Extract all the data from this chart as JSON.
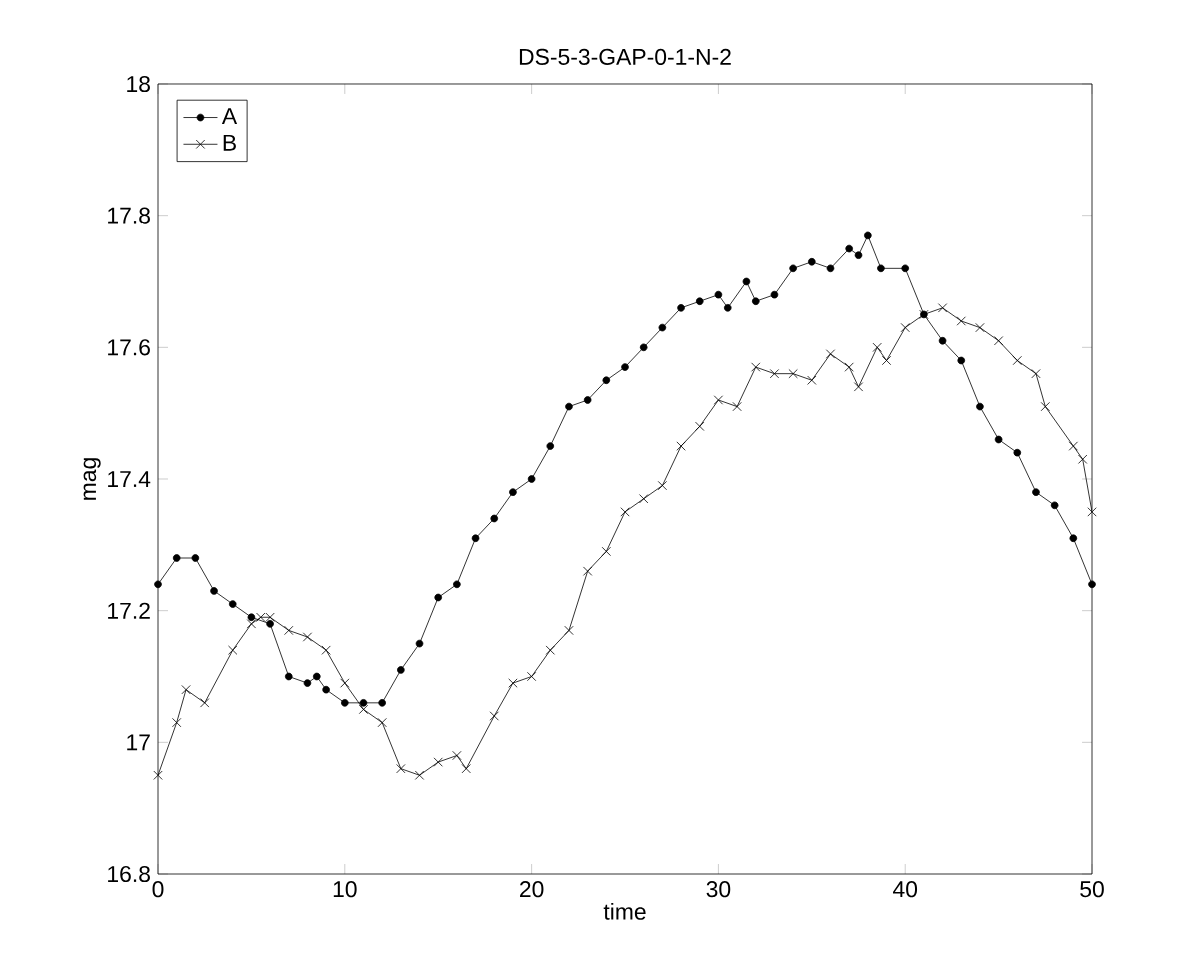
{
  "chart_data": {
    "type": "line",
    "title": "DS-5-3-GAP-0-1-N-2",
    "xlabel": "time",
    "ylabel": "mag",
    "xlim": [
      0,
      50
    ],
    "ylim": [
      16.8,
      18
    ],
    "xticks": [
      0,
      10,
      20,
      30,
      40,
      50
    ],
    "yticks": [
      16.8,
      17,
      17.2,
      17.4,
      17.6,
      17.8,
      18
    ],
    "legend": "top left",
    "grid": false,
    "series": [
      {
        "name": "A",
        "color": "#000000",
        "marker": "circle",
        "x": [
          0,
          1,
          2,
          3,
          4,
          5,
          6,
          7,
          8,
          8.5,
          9,
          10,
          11,
          12,
          13,
          14,
          15,
          16,
          17,
          18,
          19,
          20,
          21,
          22,
          23,
          24,
          25,
          26,
          27,
          28,
          29,
          30,
          30.5,
          31.5,
          32,
          33,
          34,
          35,
          36,
          37,
          37.5,
          38,
          38.7,
          40,
          41,
          42,
          43,
          44,
          45,
          46,
          47,
          48,
          49,
          50
        ],
        "values": [
          17.24,
          17.28,
          17.28,
          17.23,
          17.21,
          17.19,
          17.18,
          17.1,
          17.09,
          17.1,
          17.08,
          17.06,
          17.06,
          17.06,
          17.11,
          17.15,
          17.22,
          17.24,
          17.31,
          17.34,
          17.38,
          17.4,
          17.45,
          17.51,
          17.52,
          17.55,
          17.57,
          17.6,
          17.63,
          17.66,
          17.67,
          17.68,
          17.66,
          17.7,
          17.67,
          17.68,
          17.72,
          17.73,
          17.72,
          17.75,
          17.74,
          17.77,
          17.72,
          17.72,
          17.65,
          17.61,
          17.58,
          17.51,
          17.46,
          17.44,
          17.38,
          17.36,
          17.31,
          17.24
        ]
      },
      {
        "name": "B",
        "color": "#000000",
        "marker": "cross",
        "x": [
          0,
          1,
          1.5,
          2.5,
          4,
          5,
          5.5,
          6,
          7,
          8,
          9,
          10,
          11,
          12,
          13,
          14,
          15,
          16,
          16.5,
          18,
          19,
          20,
          21,
          22,
          23,
          24,
          25,
          26,
          27,
          28,
          29,
          30,
          31,
          32,
          33,
          34,
          35,
          36,
          37,
          37.5,
          38.5,
          39,
          40,
          41,
          42,
          43,
          44,
          45,
          46,
          47,
          47.5,
          49,
          49.5,
          50
        ],
        "values": [
          16.95,
          17.03,
          17.08,
          17.06,
          17.14,
          17.18,
          17.19,
          17.19,
          17.17,
          17.16,
          17.14,
          17.09,
          17.05,
          17.03,
          16.96,
          16.95,
          16.97,
          16.98,
          16.96,
          17.04,
          17.09,
          17.1,
          17.14,
          17.17,
          17.26,
          17.29,
          17.35,
          17.37,
          17.39,
          17.45,
          17.48,
          17.52,
          17.51,
          17.57,
          17.56,
          17.56,
          17.55,
          17.59,
          17.57,
          17.54,
          17.6,
          17.58,
          17.63,
          17.65,
          17.66,
          17.64,
          17.63,
          17.61,
          17.58,
          17.56,
          17.51,
          17.45,
          17.43,
          17.35
        ]
      }
    ]
  }
}
